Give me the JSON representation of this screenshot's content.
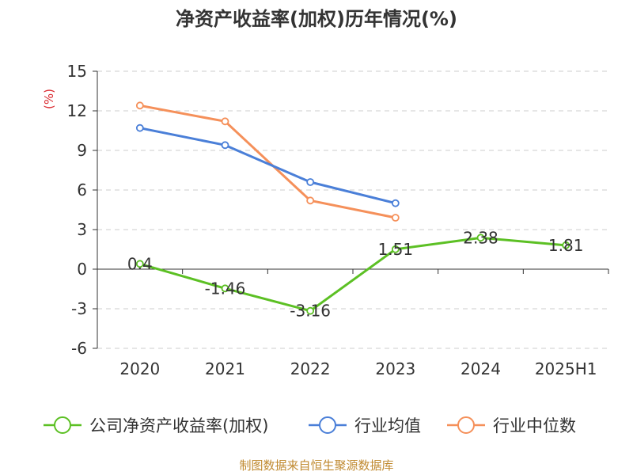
{
  "chart_data": {
    "type": "line",
    "title": "净资产收益率(加权)历年情况(%)",
    "ylabel": "(%)",
    "xlabel": "",
    "categories": [
      "2020",
      "2021",
      "2022",
      "2023",
      "2024",
      "2025H1"
    ],
    "ylim": [
      -6,
      15
    ],
    "yticks": [
      -6,
      -3,
      0,
      3,
      6,
      9,
      12,
      15
    ],
    "grid": true,
    "legend_position": "bottom",
    "series": [
      {
        "name": "公司净资产收益率(加权)",
        "color": "#5cc024",
        "values": [
          0.4,
          -1.46,
          -3.16,
          1.51,
          2.38,
          1.81
        ],
        "labels": [
          "0.4",
          "-1.46",
          "-3.16",
          "1.51",
          "2.38",
          "1.81"
        ]
      },
      {
        "name": "行业均值",
        "color": "#4a7fd8",
        "values": [
          10.7,
          9.4,
          6.6,
          5.0,
          null,
          null
        ]
      },
      {
        "name": "行业中位数",
        "color": "#f5905a",
        "values": [
          12.4,
          11.2,
          5.2,
          3.9,
          null,
          null
        ]
      }
    ]
  },
  "footer": {
    "source": "制图数据来自恒生聚源数据库"
  }
}
